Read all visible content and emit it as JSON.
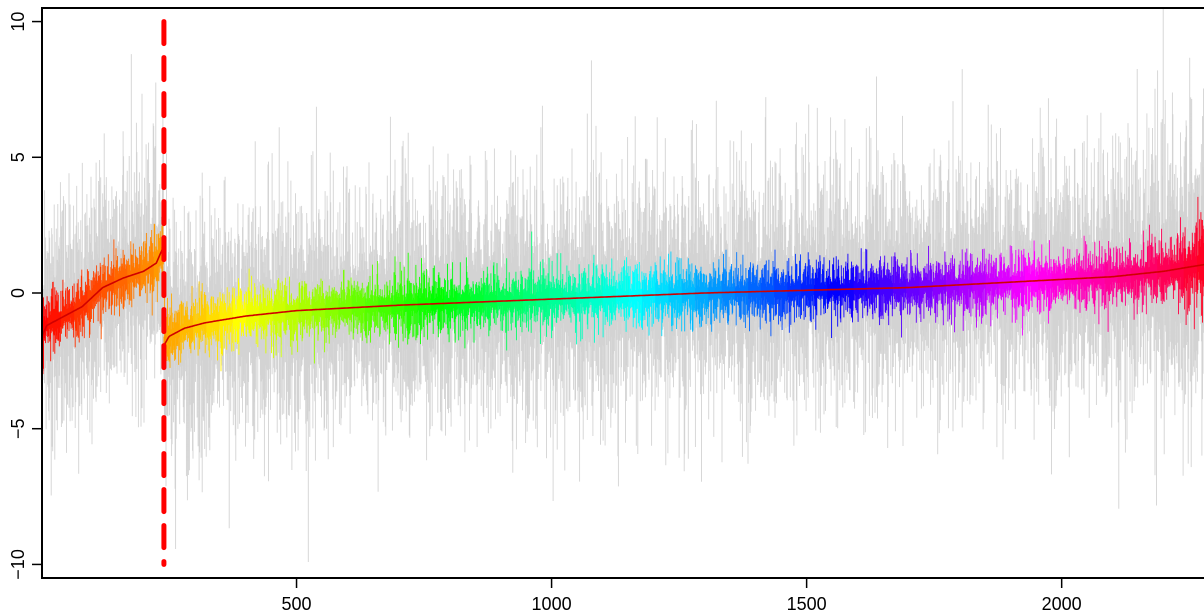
{
  "chart_data": {
    "type": "line",
    "title": "",
    "xlabel": "",
    "ylabel": "",
    "xlim": [
      1,
      2330
    ],
    "ylim": [
      -10.5,
      10.5
    ],
    "n_points": 2330,
    "x_ticks": [
      500,
      1000,
      1500,
      2000
    ],
    "x_tick_labels": [
      "500",
      "1000",
      "1500",
      "2000"
    ],
    "y_ticks": [
      -10,
      -5,
      0,
      5,
      10
    ],
    "y_tick_labels": [
      "−10",
      "−5",
      "0",
      "5",
      "10"
    ],
    "grid": false,
    "legend": "none",
    "breakpoint": {
      "x": 240,
      "y_range": [
        -10,
        10
      ],
      "color": "#ff0000",
      "style": "dashed"
    },
    "series": [
      {
        "role": "observations",
        "color": "#d3d3d3",
        "noise_sd": 2.1
      },
      {
        "role": "posterior-draws",
        "color_scale": "rainbow",
        "noise_sd": 0.55
      },
      {
        "role": "estimate",
        "color": "#d00000",
        "segments": [
          {
            "x": [
              1,
              10,
              40,
              80,
              120,
              160,
              200,
              225,
              239
            ],
            "y": [
              -1.6,
              -1.2,
              -0.9,
              -0.5,
              0.2,
              0.55,
              0.8,
              1.1,
              1.7
            ]
          },
          {
            "x": [
              241,
              250,
              280,
              320,
              400,
              500,
              700,
              900,
              1100,
              1300,
              1500,
              1700,
              1900,
              2100,
              2200,
              2280,
              2330
            ],
            "y": [
              -1.9,
              -1.6,
              -1.3,
              -1.1,
              -0.85,
              -0.65,
              -0.45,
              -0.3,
              -0.15,
              0.0,
              0.1,
              0.2,
              0.4,
              0.6,
              0.8,
              1.05,
              1.3
            ]
          }
        ]
      }
    ]
  }
}
